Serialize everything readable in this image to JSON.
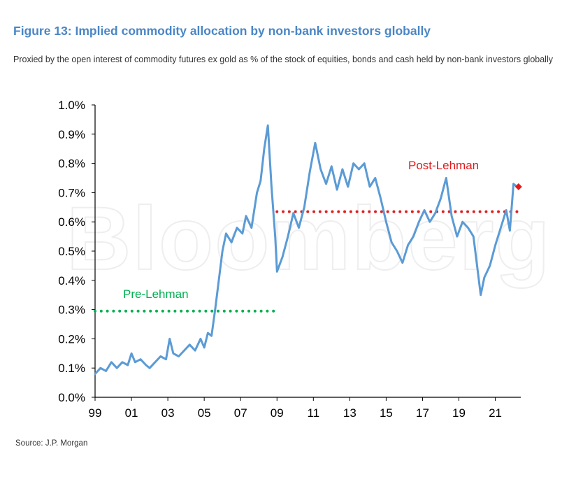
{
  "figure": {
    "title": "Figure 13: Implied commodity allocation by non-bank investors globally",
    "subtitle": "Proxied by the open interest of commodity futures ex gold as % of the stock of equities, bonds and cash held by non-bank investors globally",
    "source": "Source: J.P. Morgan",
    "watermark": "Bloomberg"
  },
  "colors": {
    "title": "#4a86c5",
    "line": "#5b9bd5",
    "pre_lehman": "#00b050",
    "post_lehman": "#e31a1c"
  },
  "chart_data": {
    "type": "line",
    "title": "",
    "xlabel": "",
    "ylabel": "",
    "x_ticks": [
      "99",
      "01",
      "03",
      "05",
      "07",
      "09",
      "11",
      "13",
      "15",
      "17",
      "19",
      "21"
    ],
    "y_ticks": [
      "0.0%",
      "0.1%",
      "0.2%",
      "0.3%",
      "0.4%",
      "0.5%",
      "0.6%",
      "0.7%",
      "0.8%",
      "0.9%",
      "1.0%"
    ],
    "xlim": [
      1999,
      2022.4
    ],
    "ylim": [
      0,
      1.0
    ],
    "grid": false,
    "legend": "none",
    "series": [
      {
        "values": [
          [
            1999.0,
            0.08
          ],
          [
            1999.3,
            0.1
          ],
          [
            1999.6,
            0.09
          ],
          [
            1999.9,
            0.12
          ],
          [
            2000.2,
            0.1
          ],
          [
            2000.5,
            0.12
          ],
          [
            2000.8,
            0.11
          ],
          [
            2001.0,
            0.15
          ],
          [
            2001.2,
            0.12
          ],
          [
            2001.5,
            0.13
          ],
          [
            2001.8,
            0.11
          ],
          [
            2002.0,
            0.1
          ],
          [
            2002.3,
            0.12
          ],
          [
            2002.6,
            0.14
          ],
          [
            2002.9,
            0.13
          ],
          [
            2003.1,
            0.2
          ],
          [
            2003.3,
            0.15
          ],
          [
            2003.6,
            0.14
          ],
          [
            2003.9,
            0.16
          ],
          [
            2004.2,
            0.18
          ],
          [
            2004.5,
            0.16
          ],
          [
            2004.8,
            0.2
          ],
          [
            2005.0,
            0.17
          ],
          [
            2005.2,
            0.22
          ],
          [
            2005.4,
            0.21
          ],
          [
            2005.6,
            0.3
          ],
          [
            2005.8,
            0.4
          ],
          [
            2006.0,
            0.5
          ],
          [
            2006.2,
            0.56
          ],
          [
            2006.5,
            0.53
          ],
          [
            2006.8,
            0.58
          ],
          [
            2007.1,
            0.56
          ],
          [
            2007.3,
            0.62
          ],
          [
            2007.6,
            0.58
          ],
          [
            2007.9,
            0.7
          ],
          [
            2008.1,
            0.74
          ],
          [
            2008.3,
            0.85
          ],
          [
            2008.5,
            0.93
          ],
          [
            2008.7,
            0.72
          ],
          [
            2008.9,
            0.55
          ],
          [
            2009.0,
            0.43
          ],
          [
            2009.3,
            0.48
          ],
          [
            2009.6,
            0.55
          ],
          [
            2009.9,
            0.63
          ],
          [
            2010.2,
            0.58
          ],
          [
            2010.5,
            0.65
          ],
          [
            2010.8,
            0.77
          ],
          [
            2011.1,
            0.87
          ],
          [
            2011.4,
            0.78
          ],
          [
            2011.7,
            0.73
          ],
          [
            2012.0,
            0.79
          ],
          [
            2012.3,
            0.71
          ],
          [
            2012.6,
            0.78
          ],
          [
            2012.9,
            0.72
          ],
          [
            2013.2,
            0.8
          ],
          [
            2013.5,
            0.78
          ],
          [
            2013.8,
            0.8
          ],
          [
            2014.1,
            0.72
          ],
          [
            2014.4,
            0.75
          ],
          [
            2014.7,
            0.68
          ],
          [
            2015.0,
            0.6
          ],
          [
            2015.3,
            0.53
          ],
          [
            2015.6,
            0.5
          ],
          [
            2015.9,
            0.46
          ],
          [
            2016.2,
            0.52
          ],
          [
            2016.5,
            0.55
          ],
          [
            2016.8,
            0.6
          ],
          [
            2017.1,
            0.64
          ],
          [
            2017.4,
            0.6
          ],
          [
            2017.7,
            0.63
          ],
          [
            2018.0,
            0.68
          ],
          [
            2018.3,
            0.75
          ],
          [
            2018.6,
            0.62
          ],
          [
            2018.9,
            0.55
          ],
          [
            2019.2,
            0.6
          ],
          [
            2019.5,
            0.58
          ],
          [
            2019.8,
            0.55
          ],
          [
            2020.0,
            0.45
          ],
          [
            2020.2,
            0.35
          ],
          [
            2020.4,
            0.41
          ],
          [
            2020.7,
            0.45
          ],
          [
            2021.0,
            0.52
          ],
          [
            2021.3,
            0.58
          ],
          [
            2021.6,
            0.64
          ],
          [
            2021.8,
            0.57
          ],
          [
            2022.0,
            0.73
          ],
          [
            2022.2,
            0.72
          ]
        ]
      }
    ],
    "reference_lines": [
      {
        "label": "Pre-Lehman",
        "y": 0.295,
        "x_start": 1999.0,
        "x_end": 2009.0
      },
      {
        "label": "Post-Lehman",
        "y": 0.635,
        "x_start": 2009.0,
        "x_end": 2022.2,
        "marker_y": 0.72
      }
    ]
  }
}
